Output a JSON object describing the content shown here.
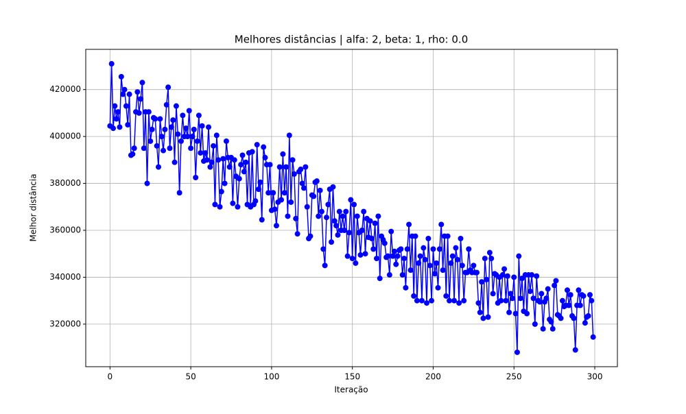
{
  "chart_data": {
    "type": "line",
    "title": "Melhores distâncias | alfa: 2, beta: 1, rho: 0.0",
    "x_label": "Iteração",
    "y_label": "Melhor distância",
    "xlim": [
      -15,
      314
    ],
    "ylim": [
      301850,
      437150
    ],
    "xticks": [
      0,
      50,
      100,
      150,
      200,
      250,
      300
    ],
    "yticks": [
      320000,
      340000,
      360000,
      380000,
      400000,
      420000
    ],
    "grid": true,
    "x": [
      0,
      1,
      2,
      3,
      4,
      5,
      6,
      7,
      8,
      9,
      10,
      11,
      12,
      13,
      14,
      15,
      16,
      17,
      18,
      19,
      20,
      21,
      22,
      23,
      24,
      25,
      26,
      27,
      28,
      29,
      30,
      31,
      32,
      33,
      34,
      35,
      36,
      37,
      38,
      39,
      40,
      41,
      42,
      43,
      44,
      45,
      46,
      47,
      48,
      49,
      50,
      51,
      52,
      53,
      54,
      55,
      56,
      57,
      58,
      59,
      60,
      61,
      62,
      63,
      64,
      65,
      66,
      67,
      68,
      69,
      70,
      71,
      72,
      73,
      74,
      75,
      76,
      77,
      78,
      79,
      80,
      81,
      82,
      83,
      84,
      85,
      86,
      87,
      88,
      89,
      90,
      91,
      92,
      93,
      94,
      95,
      96,
      97,
      98,
      99,
      100,
      101,
      102,
      103,
      104,
      105,
      106,
      107,
      108,
      109,
      110,
      111,
      112,
      113,
      114,
      115,
      116,
      117,
      118,
      119,
      120,
      121,
      122,
      123,
      124,
      125,
      126,
      127,
      128,
      129,
      130,
      131,
      132,
      133,
      134,
      135,
      136,
      137,
      138,
      139,
      140,
      141,
      142,
      143,
      144,
      145,
      146,
      147,
      148,
      149,
      150,
      151,
      152,
      153,
      154,
      155,
      156,
      157,
      158,
      159,
      160,
      161,
      162,
      163,
      164,
      165,
      166,
      167,
      168,
      169,
      170,
      171,
      172,
      173,
      174,
      175,
      176,
      177,
      178,
      179,
      180,
      181,
      182,
      183,
      184,
      185,
      186,
      187,
      188,
      189,
      190,
      191,
      192,
      193,
      194,
      195,
      196,
      197,
      198,
      199,
      200,
      201,
      202,
      203,
      204,
      205,
      206,
      207,
      208,
      209,
      210,
      211,
      212,
      213,
      214,
      215,
      216,
      217,
      218,
      219,
      220,
      221,
      222,
      223,
      224,
      225,
      226,
      227,
      228,
      229,
      230,
      231,
      232,
      233,
      234,
      235,
      236,
      237,
      238,
      239,
      240,
      241,
      242,
      243,
      244,
      245,
      246,
      247,
      248,
      249,
      250,
      251,
      252,
      253,
      254,
      255,
      256,
      257,
      258,
      259,
      260,
      261,
      262,
      263,
      264,
      265,
      266,
      267,
      268,
      269,
      270,
      271,
      272,
      273,
      274,
      275,
      276,
      277,
      278,
      279,
      280,
      281,
      282,
      283,
      284,
      285,
      286,
      287,
      288,
      289,
      290,
      291,
      292,
      293,
      294,
      295,
      296,
      297,
      298,
      299
    ],
    "series": [
      {
        "color": "#0000ff",
        "values": [
          404500,
          431000,
          403500,
          413000,
          407500,
          410500,
          404000,
          425500,
          418000,
          420000,
          413000,
          405000,
          418000,
          392000,
          392500,
          395000,
          410500,
          419000,
          410000,
          416000,
          423000,
          395000,
          410500,
          380000,
          410500,
          398000,
          403000,
          408000,
          407500,
          396000,
          387000,
          407500,
          400000,
          394000,
          403000,
          413500,
          421000,
          395000,
          404000,
          407000,
          389000,
          413000,
          401000,
          376000,
          398000,
          409000,
          400000,
          403500,
          400000,
          411000,
          395000,
          400000,
          403000,
          382500,
          398000,
          409000,
          393000,
          404500,
          389500,
          393000,
          390000,
          404000,
          387000,
          389000,
          396000,
          371000,
          400500,
          390000,
          370000,
          376500,
          390500,
          380000,
          398000,
          391000,
          387000,
          391000,
          371500,
          390000,
          383000,
          370000,
          382000,
          388000,
          392000,
          385000,
          389000,
          371000,
          393000,
          370000,
          393500,
          371000,
          372500,
          396500,
          377500,
          380500,
          364500,
          395500,
          391000,
          388000,
          376000,
          388000,
          368500,
          376000,
          369000,
          362000,
          372000,
          387000,
          373000,
          392500,
          376000,
          387000,
          366000,
          400500,
          372000,
          390000,
          384000,
          365000,
          358500,
          385000,
          386000,
          380000,
          378000,
          387000,
          370000,
          356500,
          357500,
          375000,
          374500,
          380500,
          381000,
          366000,
          377000,
          368000,
          352000,
          345000,
          365500,
          371000,
          377500,
          355000,
          378500,
          364000,
          362000,
          358000,
          368000,
          360000,
          366000,
          360000,
          368000,
          349000,
          359000,
          373000,
          348000,
          371000,
          346000,
          366000,
          359000,
          349500,
          360000,
          368000,
          350000,
          365000,
          357000,
          364000,
          356500,
          352000,
          363000,
          348000,
          366000,
          339500,
          357500,
          356000,
          354500,
          348500,
          349000,
          341000,
          359500,
          349000,
          351000,
          345500,
          349000,
          351500,
          352000,
          341000,
          348000,
          335500,
          352000,
          362500,
          343000,
          357500,
          332000,
          357500,
          330000,
          346000,
          349000,
          330000,
          352500,
          347500,
          329000,
          356500,
          345000,
          330000,
          352000,
          341500,
          346000,
          335500,
          352000,
          362500,
          343000,
          357500,
          332000,
          357500,
          330000,
          346000,
          349000,
          330000,
          352500,
          347500,
          329000,
          356500,
          345000,
          330000,
          342000,
          342000,
          352000,
          343000,
          342000,
          345000,
          342000,
          342000,
          329000,
          325000,
          338000,
          322500,
          348000,
          339000,
          323000,
          350500,
          348000,
          333000,
          341500,
          341000,
          329000,
          340000,
          330000,
          341000,
          343500,
          330000,
          340500,
          325000,
          333000,
          331000,
          340000,
          324500,
          308000,
          349000,
          331000,
          339500,
          325500,
          341000,
          324500,
          341000,
          334000,
          341000,
          331000,
          320000,
          340500,
          330000,
          329500,
          333000,
          318000,
          329500,
          331000,
          335000,
          322000,
          321000,
          318000,
          336500,
          338500,
          324000,
          323500,
          322500,
          330000,
          327500,
          328000,
          334500,
          328000,
          332500,
          323500,
          322500,
          309000,
          328000,
          334500,
          328000,
          332500,
          332000,
          320500,
          323000,
          323500,
          332500,
          330000,
          314500
        ]
      }
    ]
  }
}
